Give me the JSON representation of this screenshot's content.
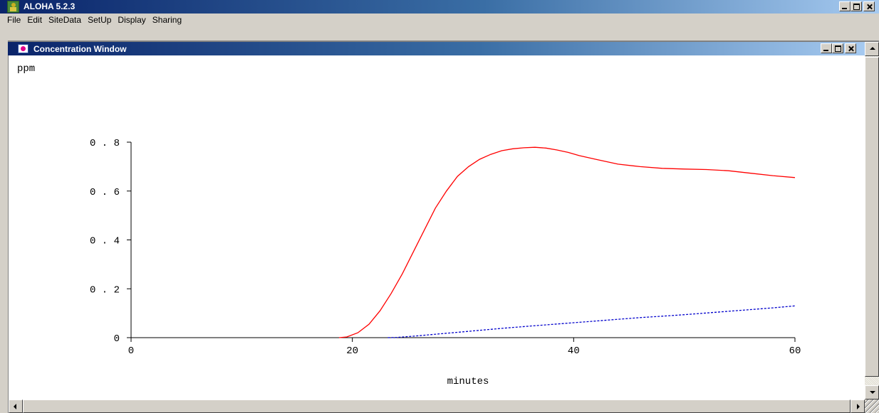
{
  "app": {
    "title": "ALOHA 5.2.3",
    "icon": "aloha-app-icon"
  },
  "menu": {
    "items": [
      "File",
      "Edit",
      "SiteData",
      "SetUp",
      "Display",
      "Sharing"
    ]
  },
  "child_window": {
    "title": "Concentration Window",
    "icon": "concentration-window-icon"
  },
  "chart_data": {
    "type": "line",
    "title": "",
    "xlabel": "minutes",
    "ylabel": "ppm",
    "xlim": [
      0,
      60
    ],
    "ylim": [
      0,
      0.8
    ],
    "xticks": [
      0,
      20,
      40,
      60
    ],
    "xtick_labels": [
      "0",
      "20",
      "40",
      "60"
    ],
    "yticks": [
      0,
      0.2,
      0.4,
      0.6,
      0.8
    ],
    "ytick_labels": [
      "0",
      "0.2",
      "0.4",
      "0.6",
      "0.8"
    ],
    "grid": false,
    "series": [
      {
        "color": "#ff0000",
        "style": "solid",
        "x": [
          18.8,
          19.5,
          20.5,
          21.5,
          22.5,
          23.5,
          24.5,
          25.5,
          26.5,
          27.5,
          28.5,
          29.5,
          30.5,
          31.5,
          32.5,
          33.5,
          34.5,
          35.5,
          36.5,
          37.5,
          38.5,
          39.5,
          40.5,
          42,
          44,
          46,
          48,
          50,
          52,
          54,
          56,
          58,
          60
        ],
        "y": [
          0.0,
          0.003,
          0.02,
          0.055,
          0.11,
          0.18,
          0.26,
          0.35,
          0.44,
          0.53,
          0.6,
          0.66,
          0.7,
          0.73,
          0.75,
          0.765,
          0.773,
          0.777,
          0.779,
          0.776,
          0.768,
          0.758,
          0.745,
          0.73,
          0.71,
          0.7,
          0.693,
          0.69,
          0.688,
          0.683,
          0.673,
          0.663,
          0.655
        ]
      },
      {
        "color": "#0000cc",
        "style": "dashed",
        "x": [
          23.2,
          24,
          26,
          28,
          30,
          32,
          34,
          36,
          38,
          40,
          42,
          44,
          46,
          48,
          50,
          52,
          54,
          56,
          58,
          60
        ],
        "y": [
          0.0,
          0.001,
          0.008,
          0.016,
          0.024,
          0.032,
          0.04,
          0.047,
          0.054,
          0.061,
          0.068,
          0.075,
          0.082,
          0.088,
          0.094,
          0.101,
          0.108,
          0.115,
          0.122,
          0.13
        ]
      }
    ]
  }
}
